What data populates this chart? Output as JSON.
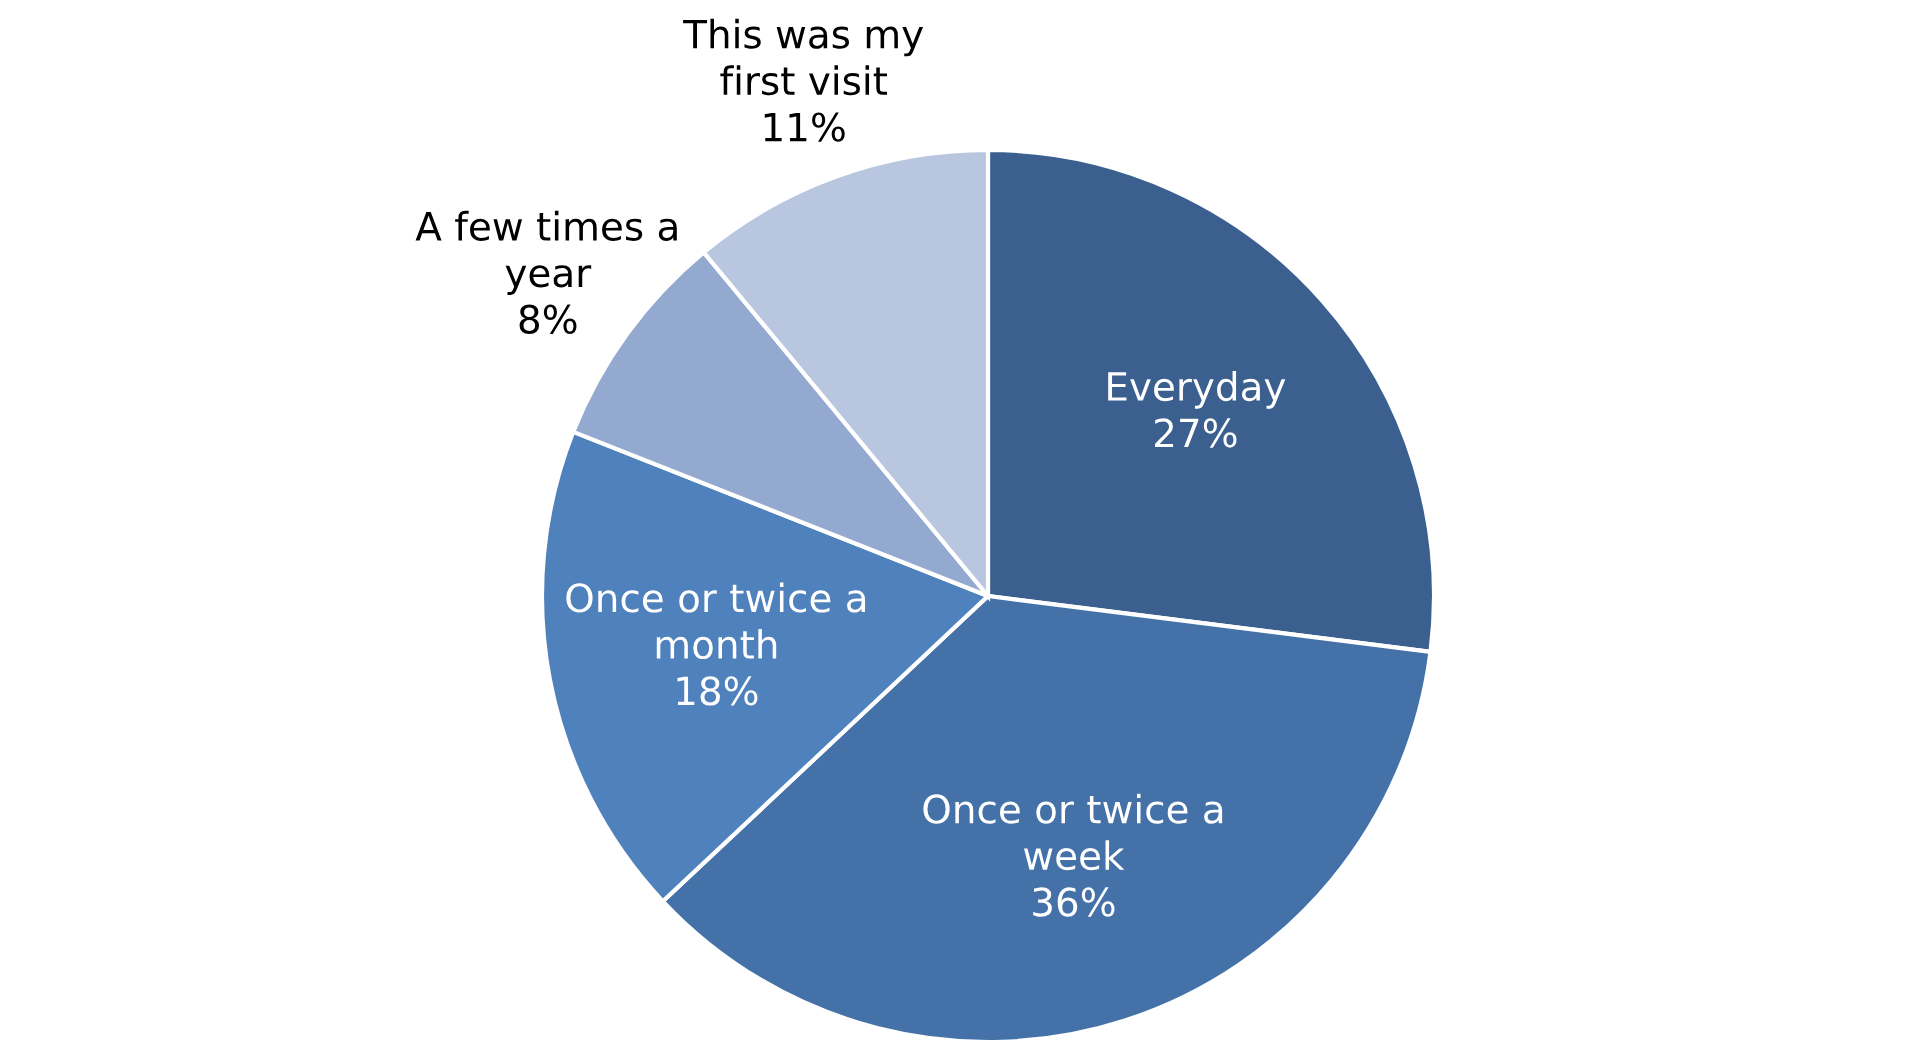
{
  "chart_data": {
    "type": "pie",
    "categories": [
      "Everyday",
      "Once or twice a\nweek",
      "Once or twice a\nmonth",
      "A few times a\nyear",
      "This was my\nfirst visit"
    ],
    "values": [
      27,
      36,
      18,
      8,
      11
    ],
    "value_labels": [
      "27%",
      "36%",
      "18%",
      "8%",
      "11%"
    ],
    "colors": [
      "#3b5f8e",
      "#4472a8",
      "#4f81bd",
      "#93a9d0",
      "#b9c6df"
    ],
    "legend": false
  }
}
